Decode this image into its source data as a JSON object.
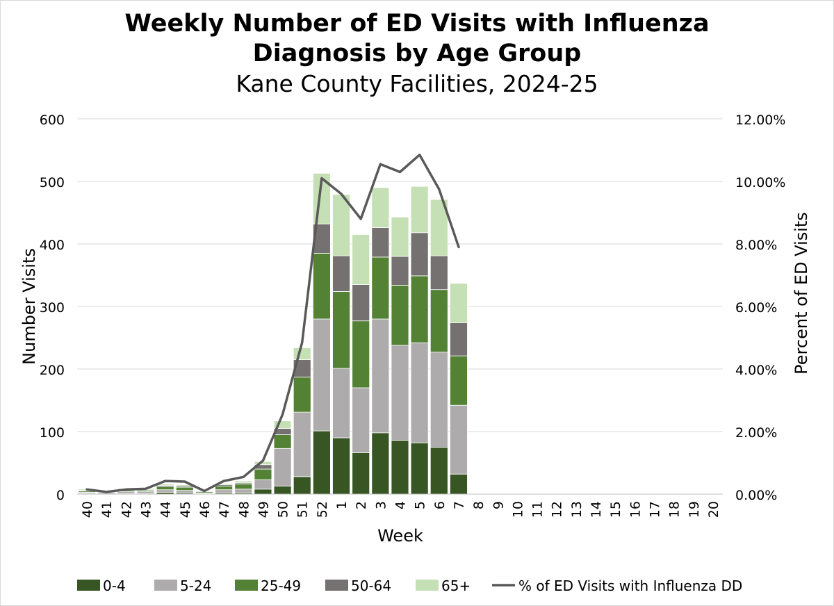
{
  "chart_data": {
    "type": "bar",
    "stacked": true,
    "title": "Weekly Number of ED Visits with Influenza",
    "title_line2": "Diagnosis by Age Group",
    "subtitle": "Kane County Facilities, 2024-25",
    "xlabel": "Week",
    "ylabel": "Number Visits",
    "y2label": "Percent of ED Visits",
    "ylim": [
      0,
      600
    ],
    "y_ticks": [
      "0",
      "100",
      "200",
      "300",
      "400",
      "500",
      "600"
    ],
    "y2lim": [
      0,
      12
    ],
    "y2_ticks": [
      "0.00%",
      "2.00%",
      "4.00%",
      "6.00%",
      "8.00%",
      "10.00%",
      "12.00%"
    ],
    "grid": true,
    "legend_position": "bottom",
    "categories": [
      "40",
      "41",
      "42",
      "43",
      "44",
      "45",
      "46",
      "47",
      "48",
      "49",
      "50",
      "51",
      "52",
      "1",
      "2",
      "3",
      "4",
      "5",
      "6",
      "7",
      "8",
      "9",
      "10",
      "11",
      "12",
      "13",
      "14",
      "15",
      "16",
      "17",
      "18",
      "19",
      "20"
    ],
    "series": [
      {
        "name": "0-4",
        "color": "#375623",
        "values": [
          1,
          0,
          1,
          1,
          3,
          2,
          1,
          2,
          2,
          8,
          13,
          28,
          101,
          90,
          66,
          98,
          86,
          82,
          75,
          32,
          null,
          null,
          null,
          null,
          null,
          null,
          null,
          null,
          null,
          null,
          null,
          null,
          null
        ]
      },
      {
        "name": "5-24",
        "color": "#adabab",
        "values": [
          2,
          2,
          3,
          3,
          4,
          4,
          1,
          5,
          6,
          15,
          60,
          103,
          179,
          111,
          104,
          182,
          152,
          160,
          152,
          110,
          null,
          null,
          null,
          null,
          null,
          null,
          null,
          null,
          null,
          null,
          null,
          null,
          null
        ]
      },
      {
        "name": "25-49",
        "color": "#548235",
        "values": [
          2,
          1,
          2,
          2,
          5,
          5,
          2,
          6,
          8,
          17,
          22,
          56,
          105,
          123,
          107,
          99,
          96,
          107,
          100,
          79,
          null,
          null,
          null,
          null,
          null,
          null,
          null,
          null,
          null,
          null,
          null,
          null,
          null
        ]
      },
      {
        "name": "50-64",
        "color": "#767171",
        "values": [
          1,
          1,
          1,
          1,
          2,
          2,
          1,
          2,
          2,
          7,
          10,
          28,
          47,
          57,
          58,
          47,
          46,
          69,
          54,
          53,
          null,
          null,
          null,
          null,
          null,
          null,
          null,
          null,
          null,
          null,
          null,
          null,
          null
        ]
      },
      {
        "name": "65+",
        "color": "#c5e0b4",
        "values": [
          2,
          1,
          2,
          2,
          2,
          2,
          1,
          2,
          3,
          5,
          12,
          19,
          81,
          98,
          80,
          64,
          63,
          74,
          90,
          63,
          null,
          null,
          null,
          null,
          null,
          null,
          null,
          null,
          null,
          null,
          null,
          null,
          null
        ]
      }
    ],
    "line": {
      "name": "% of ED Visits with Influenza DD",
      "axis": "right",
      "color": "#595959",
      "values": [
        0.15,
        0.07,
        0.15,
        0.17,
        0.42,
        0.4,
        0.1,
        0.42,
        0.55,
        1.07,
        2.55,
        4.85,
        10.1,
        9.6,
        8.8,
        10.55,
        10.3,
        10.85,
        9.75,
        7.9,
        null,
        null,
        null,
        null,
        null,
        null,
        null,
        null,
        null,
        null,
        null,
        null,
        null
      ]
    }
  }
}
